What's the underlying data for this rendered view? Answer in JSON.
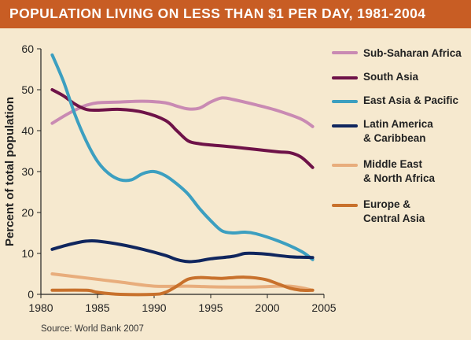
{
  "title": "POPULATION LIVING ON LESS THAN $1 PER DAY, 1981-2004",
  "source": "Source: World Bank 2007",
  "colors": {
    "title_bar": "#c85d24",
    "background": "#f6e9cf",
    "sub_saharan_africa": "#c98ab3",
    "south_asia": "#6e1248",
    "east_asia_pacific": "#3c9fc0",
    "latin_america": "#10265e",
    "middle_east": "#e8ad7c",
    "europe_central_asia": "#c8712c"
  },
  "chart_data": {
    "type": "line",
    "title": "POPULATION LIVING ON LESS THAN $1 PER DAY, 1981-2004",
    "xlabel": "",
    "ylabel": "Percent of total population",
    "xlim": [
      1980,
      2005
    ],
    "ylim": [
      0,
      60
    ],
    "xticks": [
      1980,
      1985,
      1990,
      1995,
      2000,
      2005
    ],
    "yticks": [
      0,
      10,
      20,
      30,
      40,
      50,
      60
    ],
    "grid": false,
    "legend_position": "right",
    "series": [
      {
        "name": "Sub-Saharan Africa",
        "color": "#c98ab3",
        "points": [
          [
            1981,
            41.8
          ],
          [
            1982,
            43.5
          ],
          [
            1983,
            45
          ],
          [
            1984,
            46.2
          ],
          [
            1985,
            46.8
          ],
          [
            1987,
            47
          ],
          [
            1989,
            47.2
          ],
          [
            1991,
            46.8
          ],
          [
            1992,
            46
          ],
          [
            1993,
            45.3
          ],
          [
            1994,
            45.5
          ],
          [
            1995,
            47
          ],
          [
            1996,
            48
          ],
          [
            1997,
            47.6
          ],
          [
            1999,
            46.3
          ],
          [
            2001,
            44.8
          ],
          [
            2003,
            42.8
          ],
          [
            2004,
            41
          ]
        ]
      },
      {
        "name": "South Asia",
        "color": "#6e1248",
        "points": [
          [
            1981,
            50
          ],
          [
            1982,
            48.5
          ],
          [
            1983,
            46.5
          ],
          [
            1984,
            45.2
          ],
          [
            1985,
            45
          ],
          [
            1987,
            45.2
          ],
          [
            1989,
            44.5
          ],
          [
            1991,
            42.5
          ],
          [
            1992,
            40
          ],
          [
            1993,
            37.5
          ],
          [
            1994,
            36.8
          ],
          [
            1995,
            36.5
          ],
          [
            1997,
            36
          ],
          [
            1999,
            35.4
          ],
          [
            2001,
            34.8
          ],
          [
            2002,
            34.6
          ],
          [
            2003,
            33.5
          ],
          [
            2004,
            31
          ]
        ]
      },
      {
        "name": "East Asia & Pacific",
        "color": "#3c9fc0",
        "points": [
          [
            1981,
            58.5
          ],
          [
            1982,
            52
          ],
          [
            1983,
            44
          ],
          [
            1984,
            37.5
          ],
          [
            1985,
            32.5
          ],
          [
            1986,
            29.5
          ],
          [
            1987,
            28
          ],
          [
            1988,
            28
          ],
          [
            1989,
            29.5
          ],
          [
            1990,
            30
          ],
          [
            1991,
            29
          ],
          [
            1992,
            27
          ],
          [
            1993,
            24.5
          ],
          [
            1994,
            21
          ],
          [
            1995,
            18
          ],
          [
            1996,
            15.5
          ],
          [
            1997,
            15
          ],
          [
            1998,
            15.2
          ],
          [
            1999,
            14.8
          ],
          [
            2001,
            13
          ],
          [
            2003,
            10.5
          ],
          [
            2004,
            8.5
          ]
        ]
      },
      {
        "name": "Latin America & Caribbean",
        "color": "#10265e",
        "points": [
          [
            1981,
            11
          ],
          [
            1982,
            11.8
          ],
          [
            1983,
            12.5
          ],
          [
            1984,
            13
          ],
          [
            1985,
            13
          ],
          [
            1987,
            12.2
          ],
          [
            1989,
            11
          ],
          [
            1991,
            9.5
          ],
          [
            1992,
            8.5
          ],
          [
            1993,
            8
          ],
          [
            1994,
            8.2
          ],
          [
            1995,
            8.7
          ],
          [
            1997,
            9.3
          ],
          [
            1998,
            10
          ],
          [
            1999,
            10
          ],
          [
            2000,
            9.8
          ],
          [
            2002,
            9.2
          ],
          [
            2004,
            9
          ]
        ]
      },
      {
        "name": "Middle East & North Africa",
        "color": "#e8ad7c",
        "points": [
          [
            1981,
            5
          ],
          [
            1984,
            4
          ],
          [
            1987,
            3
          ],
          [
            1990,
            2
          ],
          [
            1993,
            2
          ],
          [
            1996,
            1.8
          ],
          [
            1999,
            1.8
          ],
          [
            2002,
            2
          ],
          [
            2004,
            1
          ]
        ]
      },
      {
        "name": "Europe & Central Asia",
        "color": "#c8712c",
        "points": [
          [
            1981,
            1
          ],
          [
            1984,
            1
          ],
          [
            1985,
            0.5
          ],
          [
            1987,
            0
          ],
          [
            1990,
            0
          ],
          [
            1991,
            0.5
          ],
          [
            1992,
            2
          ],
          [
            1993,
            3.7
          ],
          [
            1994,
            4.1
          ],
          [
            1995,
            4
          ],
          [
            1996,
            3.9
          ],
          [
            1997,
            4.1
          ],
          [
            1998,
            4.2
          ],
          [
            1999,
            4
          ],
          [
            2000,
            3.5
          ],
          [
            2001,
            2.5
          ],
          [
            2002,
            1.5
          ],
          [
            2003,
            1
          ],
          [
            2004,
            1
          ]
        ]
      }
    ]
  },
  "legend": [
    {
      "label": "Sub-Saharan Africa"
    },
    {
      "label": "South Asia"
    },
    {
      "label": "East Asia & Pacific"
    },
    {
      "label": "Latin America\n& Caribbean"
    },
    {
      "label": "Middle East\n& North Africa"
    },
    {
      "label": "Europe &\nCentral Asia"
    }
  ]
}
